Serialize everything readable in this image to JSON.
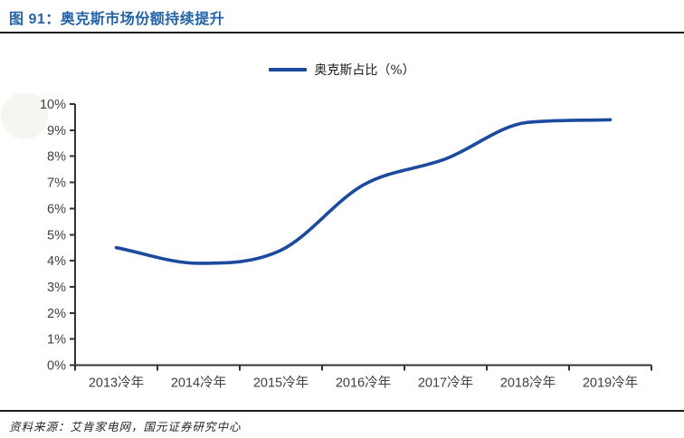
{
  "figure": {
    "title": "图 91：奥克斯市场份额持续提升"
  },
  "legend": {
    "label": "奥克斯占比（%）"
  },
  "source": {
    "text": "资料来源：艾肯家电网，国元证券研究中心"
  },
  "colors": {
    "line": "#1B4A9E",
    "title": "#2463A6",
    "axis": "#333333",
    "tick_label": "#404040",
    "rule": "#1A1A1A",
    "watermark": "#F6F5F2"
  },
  "chart_data": {
    "type": "line",
    "title": "图 91：奥克斯市场份额持续提升",
    "categories": [
      "2013冷年",
      "2014冷年",
      "2015冷年",
      "2016冷年",
      "2017冷年",
      "2018冷年",
      "2019冷年"
    ],
    "series": [
      {
        "name": "奥克斯占比（%）",
        "values": [
          4.5,
          3.9,
          4.4,
          6.9,
          7.9,
          9.3,
          9.4
        ]
      }
    ],
    "xlabel": "",
    "ylabel": "",
    "ylim": [
      0,
      10
    ],
    "ytick_labels": [
      "0%",
      "1%",
      "2%",
      "3%",
      "4%",
      "5%",
      "6%",
      "7%",
      "8%",
      "9%",
      "10%"
    ],
    "grid": false,
    "legend_position": "top-center",
    "smoothed": true
  }
}
